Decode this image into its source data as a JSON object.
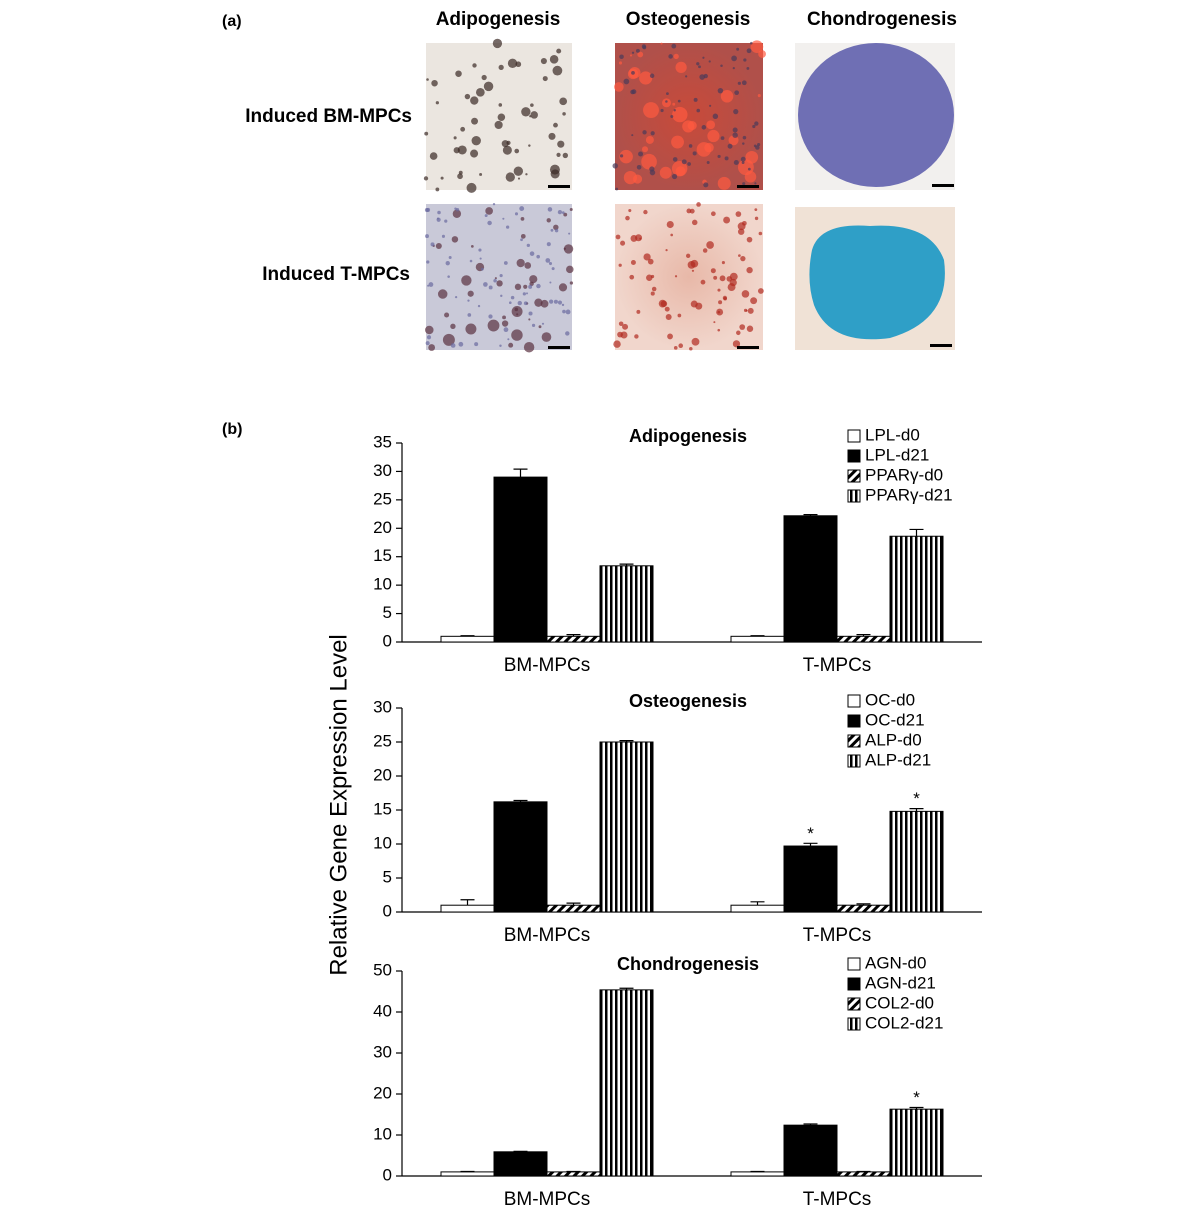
{
  "panel_a": {
    "label": "(a)",
    "columns": [
      "Adipogenesis",
      "Osteogenesis",
      "Chondrogenesis"
    ],
    "rows": [
      "Induced BM-MPCs",
      "Induced T-MPCs"
    ]
  },
  "panel_b": {
    "label": "(b)",
    "y_label": "Relative Gene Expression Level"
  },
  "chart_data": [
    {
      "type": "bar",
      "title": "Adipogenesis",
      "categories": [
        "BM-MPCs",
        "T-MPCs"
      ],
      "ylim": [
        0,
        35
      ],
      "yticks": [
        0,
        5,
        10,
        15,
        20,
        25,
        30,
        35
      ],
      "series": [
        {
          "name": "LPL-d0",
          "fill": "white",
          "values": [
            1,
            1
          ],
          "errors": [
            0.1,
            0.1
          ],
          "markers": [
            null,
            null
          ]
        },
        {
          "name": "LPL-d21",
          "fill": "black",
          "values": [
            29.0,
            22.2
          ],
          "errors": [
            1.4,
            0.2
          ],
          "markers": [
            null,
            null
          ]
        },
        {
          "name": "PPARγ-d0",
          "fill": "diagonal",
          "values": [
            1,
            1
          ],
          "errors": [
            0.3,
            0.3
          ],
          "markers": [
            null,
            null
          ]
        },
        {
          "name": "PPARγ-d21",
          "fill": "vertical",
          "values": [
            13.4,
            18.6
          ],
          "errors": [
            0.3,
            1.2
          ],
          "markers": [
            null,
            null
          ]
        }
      ]
    },
    {
      "type": "bar",
      "title": "Osteogenesis",
      "categories": [
        "BM-MPCs",
        "T-MPCs"
      ],
      "ylim": [
        0,
        30
      ],
      "yticks": [
        0,
        5,
        10,
        15,
        20,
        25,
        30
      ],
      "series": [
        {
          "name": "OC-d0",
          "fill": "white",
          "values": [
            1,
            1
          ],
          "errors": [
            0.8,
            0.5
          ],
          "markers": [
            null,
            null
          ]
        },
        {
          "name": "OC-d21",
          "fill": "black",
          "values": [
            16.2,
            9.7
          ],
          "errors": [
            0.2,
            0.4
          ],
          "markers": [
            null,
            "*"
          ]
        },
        {
          "name": "ALP-d0",
          "fill": "diagonal",
          "values": [
            1,
            1
          ],
          "errors": [
            0.3,
            0.2
          ],
          "markers": [
            null,
            null
          ]
        },
        {
          "name": "ALP-d21",
          "fill": "vertical",
          "values": [
            25.0,
            14.8
          ],
          "errors": [
            0.2,
            0.4
          ],
          "markers": [
            null,
            "*"
          ]
        }
      ]
    },
    {
      "type": "bar",
      "title": "Chondrogenesis",
      "categories": [
        "BM-MPCs",
        "T-MPCs"
      ],
      "ylim": [
        0,
        50
      ],
      "yticks": [
        0,
        10,
        20,
        30,
        40,
        50
      ],
      "series": [
        {
          "name": "AGN-d0",
          "fill": "white",
          "values": [
            1,
            1
          ],
          "errors": [
            0.1,
            0.1
          ],
          "markers": [
            null,
            null
          ]
        },
        {
          "name": "AGN-d21",
          "fill": "black",
          "values": [
            5.9,
            12.4
          ],
          "errors": [
            0.1,
            0.3
          ],
          "markers": [
            null,
            null
          ]
        },
        {
          "name": "COL2-d0",
          "fill": "diagonal",
          "values": [
            1,
            1
          ],
          "errors": [
            0.1,
            0.1
          ],
          "markers": [
            null,
            null
          ]
        },
        {
          "name": "COL2-d21",
          "fill": "vertical",
          "values": [
            45.4,
            16.3
          ],
          "errors": [
            0.4,
            0.4
          ],
          "markers": [
            null,
            "*"
          ]
        }
      ]
    }
  ]
}
